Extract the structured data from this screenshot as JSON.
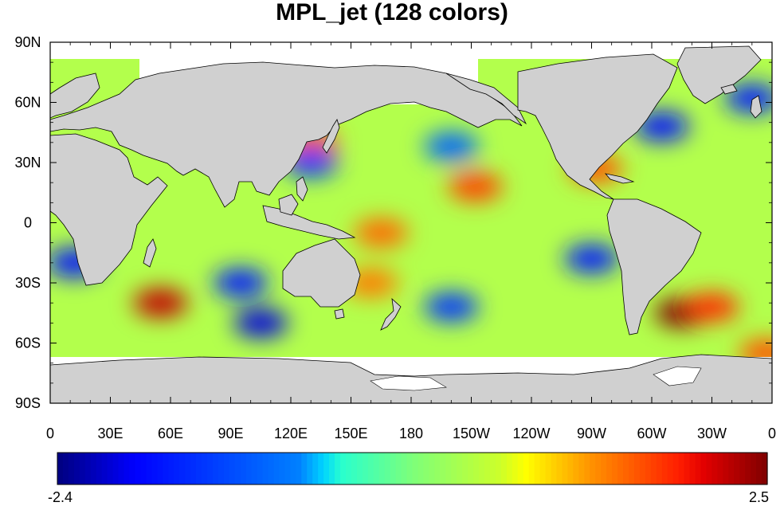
{
  "title": "MPL_jet (128 colors)",
  "chart_data": {
    "type": "heatmap",
    "title": "MPL_jet (128 colors)",
    "projection": "cylindrical equidistant, centered on 180",
    "lon_range": [
      0,
      360
    ],
    "lat_range": [
      -90,
      90
    ],
    "x_ticks": [
      "0",
      "30E",
      "60E",
      "90E",
      "120E",
      "150E",
      "180",
      "150W",
      "120W",
      "90W",
      "60W",
      "30W",
      "0"
    ],
    "y_ticks": [
      "90N",
      "60N",
      "30N",
      "0",
      "30S",
      "60S",
      "90S"
    ],
    "colormap": "MPL_jet",
    "colormap_levels": 128,
    "value_range": [
      -2.4,
      2.5
    ],
    "colorbar_labels": [
      "-2.4",
      "2.5"
    ],
    "colorbar_position": "bottom",
    "land_color": "#d0d0d0",
    "missing_color": "#ffffff",
    "anomalies": [
      {
        "lon": 55,
        "lat": -40,
        "value": 2.2
      },
      {
        "lon": 315,
        "lat": -45,
        "value": 2.5
      },
      {
        "lon": 330,
        "lat": -42,
        "value": 1.8
      },
      {
        "lon": 212,
        "lat": 18,
        "value": 1.7
      },
      {
        "lon": 165,
        "lat": -5,
        "value": 1.5
      },
      {
        "lon": 160,
        "lat": -30,
        "value": 1.4
      },
      {
        "lon": 130,
        "lat": 40,
        "value": 1.6
      },
      {
        "lon": 272,
        "lat": 27,
        "value": 1.6
      },
      {
        "lon": 357,
        "lat": -65,
        "value": 1.6
      },
      {
        "lon": 105,
        "lat": -50,
        "value": -2.0
      },
      {
        "lon": 95,
        "lat": -30,
        "value": -1.6
      },
      {
        "lon": 130,
        "lat": 30,
        "value": -1.4
      },
      {
        "lon": 200,
        "lat": -42,
        "value": -1.4
      },
      {
        "lon": 270,
        "lat": -18,
        "value": -1.6
      },
      {
        "lon": 305,
        "lat": 48,
        "value": -1.8
      },
      {
        "lon": 350,
        "lat": 62,
        "value": -1.6
      },
      {
        "lon": 12,
        "lat": -20,
        "value": -1.8
      },
      {
        "lon": 200,
        "lat": 38,
        "value": -1.0
      }
    ]
  }
}
